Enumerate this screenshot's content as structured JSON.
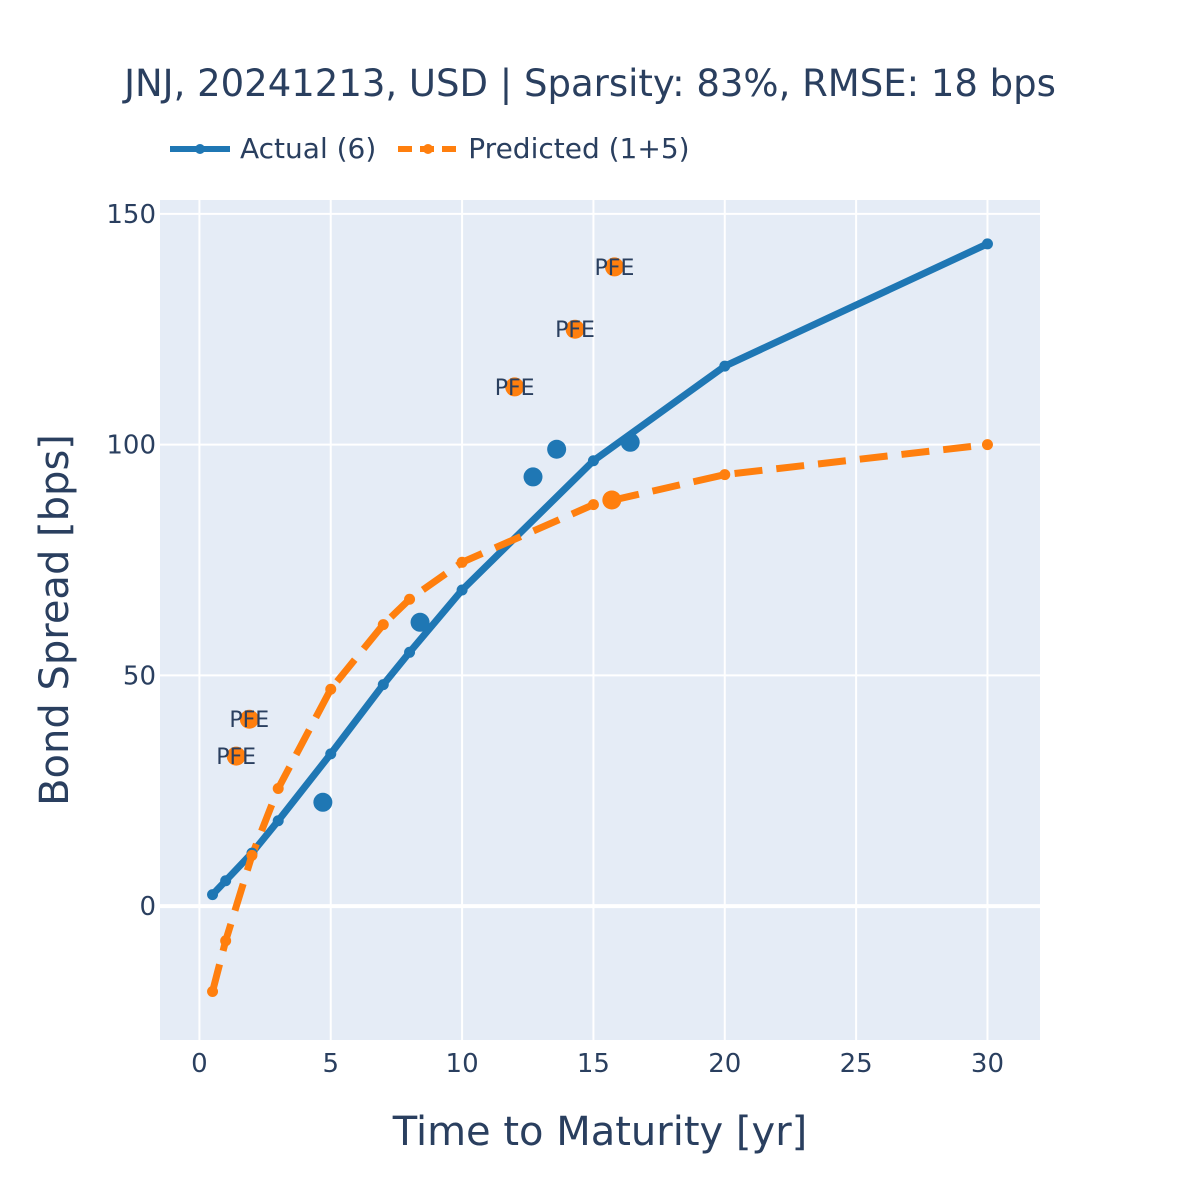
{
  "chart_data": {
    "type": "line",
    "title": "JNJ, 20241213, USD | Sparsity: 83%, RMSE: 18 bps",
    "xlabel": "Time to Maturity [yr]",
    "ylabel": "Bond Spread [bps]",
    "xlim": [
      -1.5,
      32
    ],
    "ylim": [
      -29,
      153
    ],
    "xticks": [
      0,
      5,
      10,
      15,
      20,
      25,
      30
    ],
    "yticks": [
      0,
      50,
      100,
      150
    ],
    "grid": true,
    "legend_position": "top-left",
    "colors": {
      "actual": "#1f77b4",
      "predicted": "#ff7f0e",
      "plot_bg": "#e5ecf6",
      "grid": "#ffffff",
      "text": "#2a3f5f"
    },
    "series": [
      {
        "name": "Actual (6)",
        "style": "solid",
        "x": [
          0.5,
          1,
          2,
          3,
          5,
          7,
          8,
          10,
          15,
          20,
          30
        ],
        "y": [
          2.5,
          5.5,
          11.5,
          18.5,
          33,
          48,
          55,
          68.5,
          96.5,
          117,
          143.5
        ]
      },
      {
        "name": "Predicted (1+5)",
        "style": "dashed",
        "x": [
          0.5,
          1,
          2,
          3,
          5,
          7,
          8,
          10,
          15,
          20,
          30
        ],
        "y": [
          -18.5,
          -7.5,
          11,
          25.5,
          47,
          61,
          66.5,
          74.5,
          87,
          93.5,
          100
        ]
      }
    ],
    "actual_points": [
      {
        "x": 4.7,
        "y": 22.5
      },
      {
        "x": 8.4,
        "y": 61.5
      },
      {
        "x": 12.7,
        "y": 93
      },
      {
        "x": 13.6,
        "y": 99
      },
      {
        "x": 16.4,
        "y": 100.5
      }
    ],
    "predicted_points": [
      {
        "x": 15.7,
        "y": 88
      }
    ],
    "peer_points": [
      {
        "x": 1.4,
        "y": 32.5,
        "label": "PFE"
      },
      {
        "x": 1.9,
        "y": 40.5,
        "label": "PFE"
      },
      {
        "x": 12.0,
        "y": 112.5,
        "label": "PFE"
      },
      {
        "x": 14.3,
        "y": 125,
        "label": "PFE"
      },
      {
        "x": 15.8,
        "y": 138.5,
        "label": "PFE"
      }
    ]
  }
}
